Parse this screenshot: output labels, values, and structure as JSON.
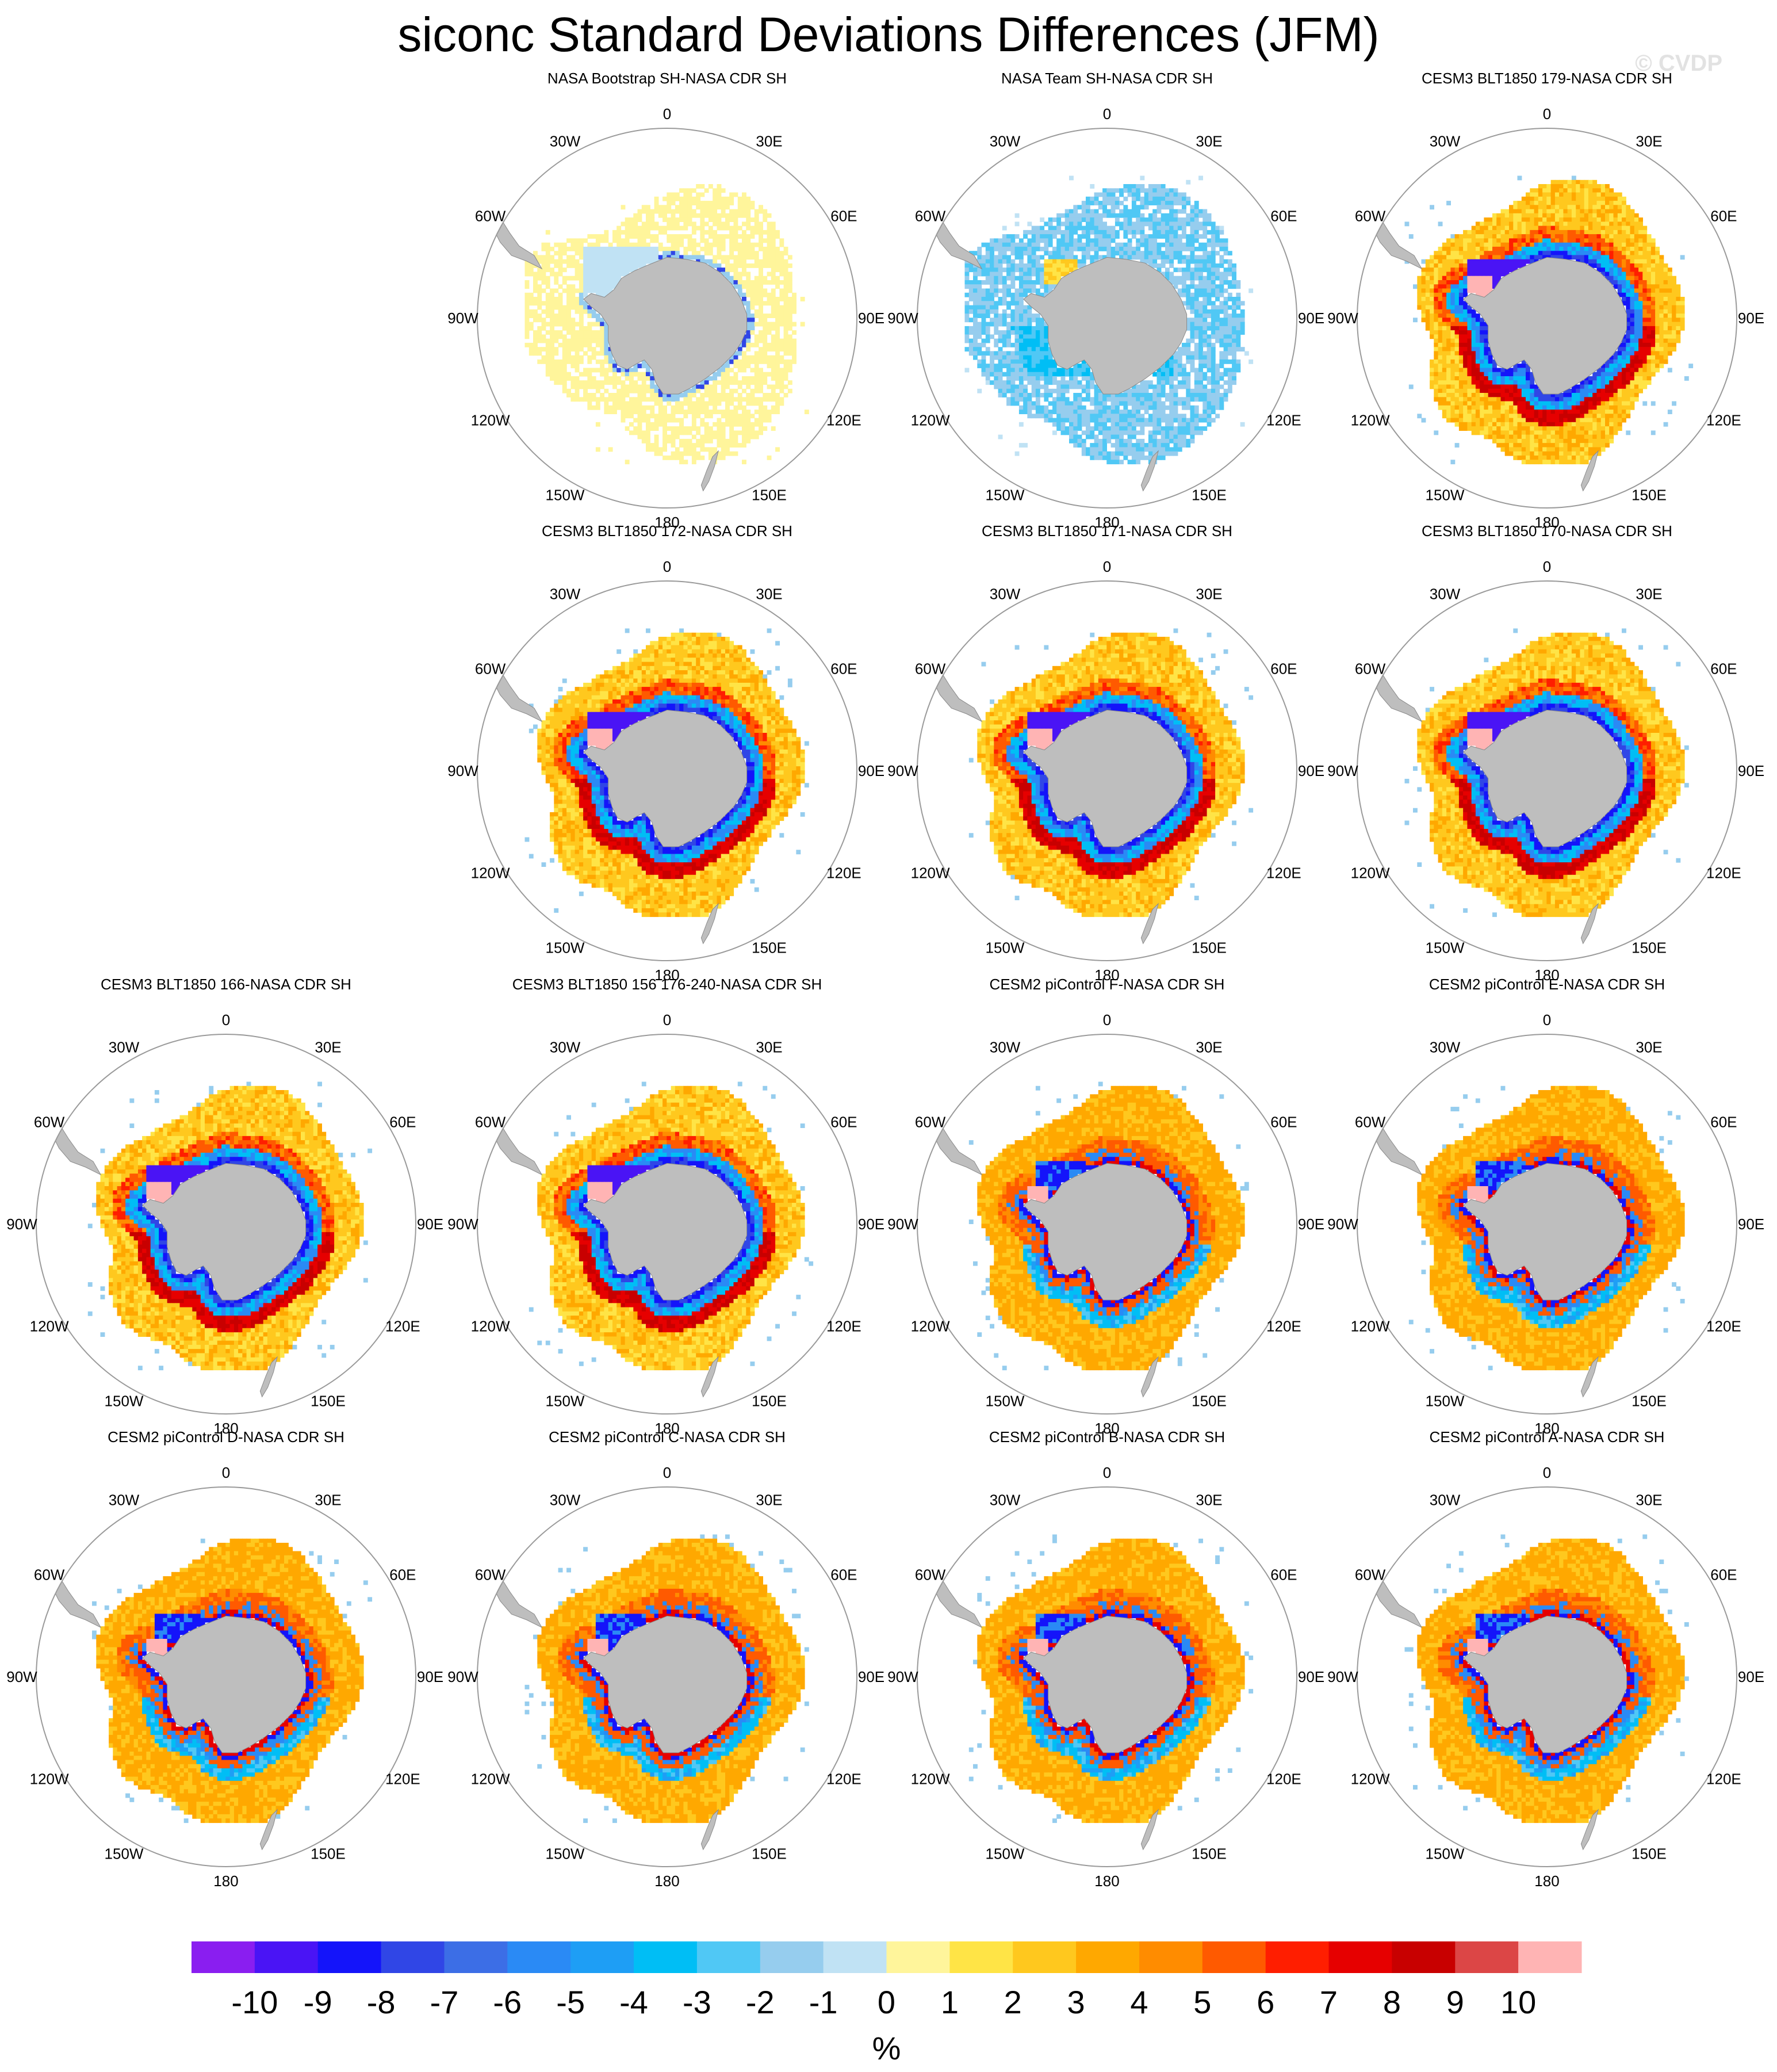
{
  "title": "siconc Standard Deviations Differences (JFM)",
  "watermark": "© CVDP",
  "longitude_labels": [
    "0",
    "30E",
    "60E",
    "90E",
    "120E",
    "150E",
    "180",
    "150W",
    "120W",
    "90W",
    "60W",
    "30W"
  ],
  "colors": {
    "land": "#bebebe",
    "circle": "#9a9a9a",
    "background": "#ffffff"
  },
  "panels": [
    {
      "title": "NASA Bootstrap SH-NASA CDR SH",
      "pattern": "bootstrap"
    },
    {
      "title": "NASA Team SH-NASA CDR SH",
      "pattern": "team"
    },
    {
      "title": "CESM3 BLT1850 179-NASA CDR SH",
      "pattern": "cesm3"
    },
    {
      "title": "CESM3 BLT1850 172-NASA CDR SH",
      "pattern": "cesm3"
    },
    {
      "title": "CESM3 BLT1850 171-NASA CDR SH",
      "pattern": "cesm3"
    },
    {
      "title": "CESM3 BLT1850 170-NASA CDR SH",
      "pattern": "cesm3"
    },
    {
      "title": "CESM3 BLT1850 166-NASA CDR SH",
      "pattern": "cesm3"
    },
    {
      "title": "CESM3 BLT1850 156 176-240-NASA CDR SH",
      "pattern": "cesm3"
    },
    {
      "title": "CESM2 piControl F-NASA CDR SH",
      "pattern": "cesm2"
    },
    {
      "title": "CESM2 piControl E-NASA CDR SH",
      "pattern": "cesm2"
    },
    {
      "title": "CESM2 piControl D-NASA CDR SH",
      "pattern": "cesm2"
    },
    {
      "title": "CESM2 piControl C-NASA CDR SH",
      "pattern": "cesm2"
    },
    {
      "title": "CESM2 piControl B-NASA CDR SH",
      "pattern": "cesm2"
    },
    {
      "title": "CESM2 piControl A-NASA CDR SH",
      "pattern": "cesm2"
    }
  ],
  "colorbar": {
    "unit": "%",
    "labels": [
      "-10",
      "-9",
      "-8",
      "-7",
      "-6",
      "-5",
      "-4",
      "-3",
      "-2",
      "-1",
      "0",
      "1",
      "2",
      "3",
      "4",
      "5",
      "6",
      "7",
      "8",
      "9",
      "10"
    ],
    "colors": [
      "#8a1ef0",
      "#4a14f5",
      "#1414fa",
      "#3046e6",
      "#3c6ee6",
      "#2a8af5",
      "#1e9ef5",
      "#00bef5",
      "#50c8f5",
      "#96cdee",
      "#c0e2f4",
      "#fff59b",
      "#ffe446",
      "#ffc81e",
      "#ffa800",
      "#ff8c00",
      "#ff5a00",
      "#ff1e00",
      "#e60000",
      "#c80000",
      "#dc4646",
      "#ffb4b4"
    ]
  }
}
